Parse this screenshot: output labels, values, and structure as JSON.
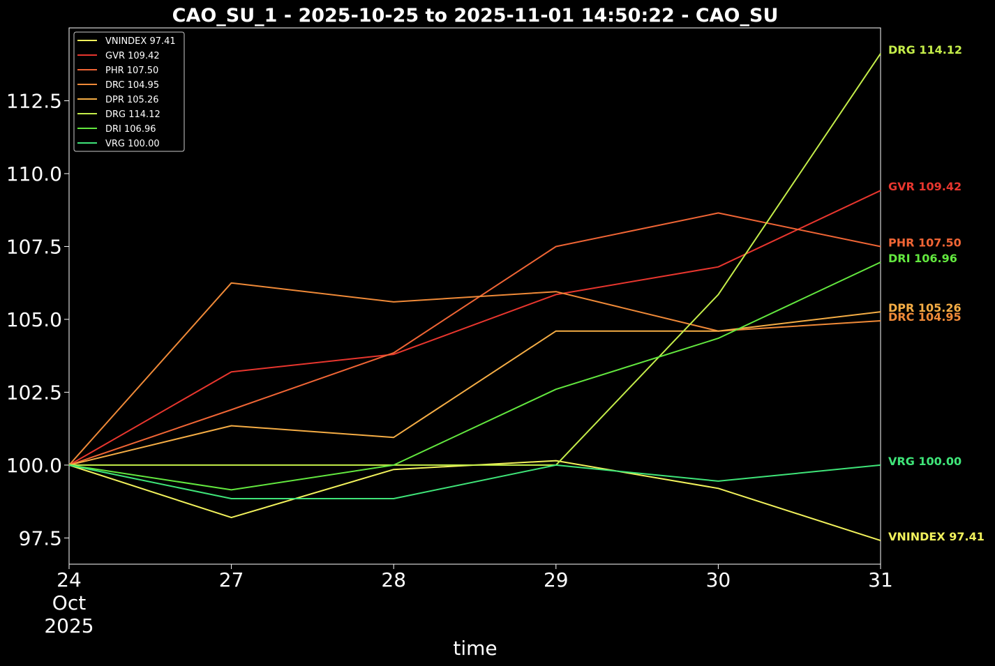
{
  "chart_data": {
    "type": "line",
    "title": "CAO_SU_1 - 2025-10-25 to 2025-11-01 14:50:22 - CAO_SU",
    "xlabel": "time",
    "ylabel": "",
    "x": [
      "2025-10-24",
      "2025-10-27",
      "2025-10-28",
      "2025-10-29",
      "2025-10-30",
      "2025-10-31"
    ],
    "x_tick_labels": [
      [
        "24",
        "Oct",
        "2025"
      ],
      [
        "27"
      ],
      [
        "28"
      ],
      [
        "29"
      ],
      [
        "30"
      ],
      [
        "31"
      ]
    ],
    "y_ticks": [
      "97.5",
      "100.0",
      "102.5",
      "105.0",
      "107.5",
      "110.0",
      "112.5"
    ],
    "ylim": [
      96.6,
      115.0
    ],
    "grid": false,
    "legend_position": "upper-left",
    "series": [
      {
        "name": "VNINDEX 97.41",
        "end_label": "VNINDEX 97.41",
        "color": "#f2f25c",
        "values": [
          100.0,
          98.2,
          99.85,
          100.15,
          99.2,
          97.41
        ]
      },
      {
        "name": "GVR 109.42",
        "end_label": "GVR 109.42",
        "color": "#e8362e",
        "values": [
          100.0,
          103.2,
          103.8,
          105.85,
          106.8,
          109.42
        ]
      },
      {
        "name": "PHR 107.50",
        "end_label": "PHR 107.50",
        "color": "#f06535",
        "values": [
          100.0,
          101.9,
          103.85,
          107.5,
          108.65,
          107.5
        ]
      },
      {
        "name": "DRC 104.95",
        "end_label": "DRC 104.95",
        "color": "#f08a38",
        "values": [
          100.0,
          106.25,
          105.6,
          105.95,
          104.6,
          104.95
        ]
      },
      {
        "name": "DPR 105.26",
        "end_label": "DPR 105.26",
        "color": "#f5ad45",
        "values": [
          100.0,
          101.35,
          100.95,
          104.6,
          104.6,
          105.26
        ]
      },
      {
        "name": "DRG 114.12",
        "end_label": "DRG 114.12",
        "color": "#c5ee4a",
        "values": [
          100.0,
          100.0,
          100.0,
          100.0,
          105.85,
          114.12
        ]
      },
      {
        "name": "DRI 106.96",
        "end_label": "DRI 106.96",
        "color": "#63e83f",
        "values": [
          100.0,
          99.15,
          100.0,
          102.6,
          104.35,
          106.96
        ]
      },
      {
        "name": "VRG 100.00",
        "end_label": "VRG 100.00",
        "color": "#3fe579",
        "values": [
          100.0,
          98.85,
          98.85,
          100.0,
          99.45,
          100.0
        ]
      }
    ]
  }
}
